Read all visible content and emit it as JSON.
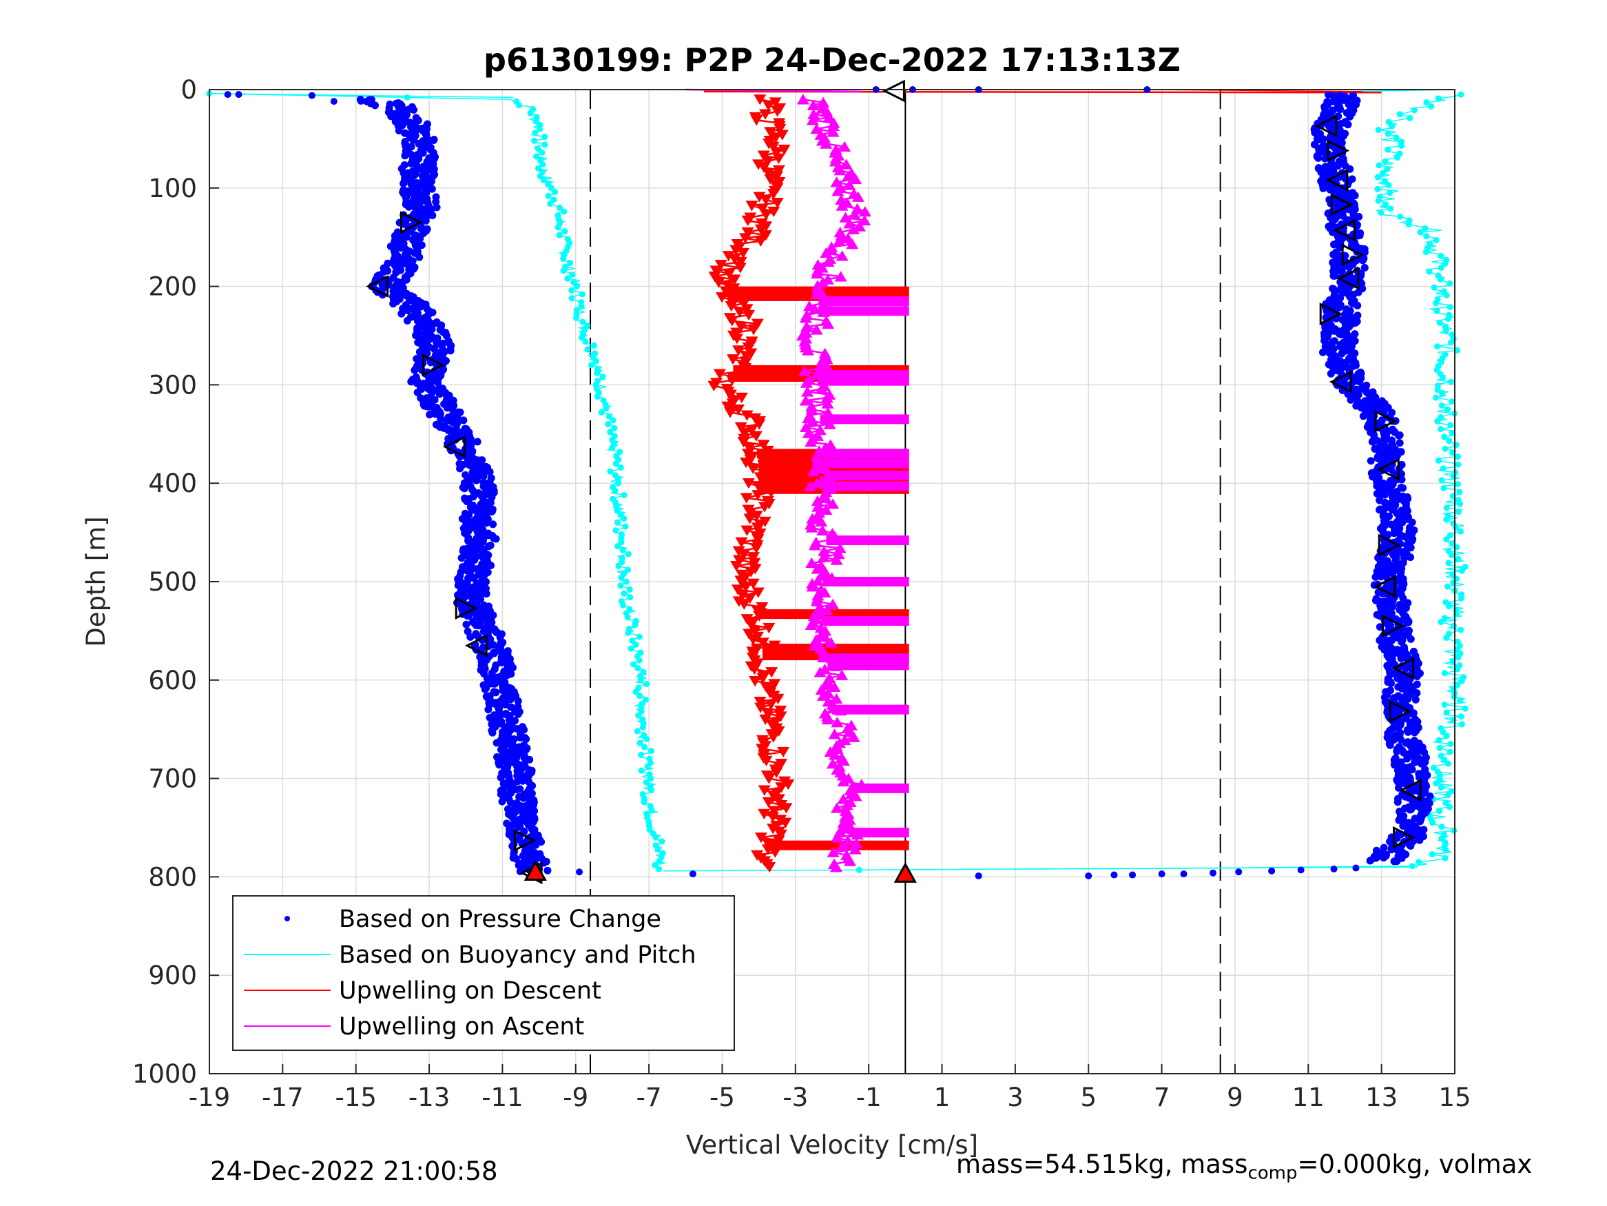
{
  "chart_data": {
    "type": "scatter",
    "title": "p6130199: P2P 24-Dec-2022 17:13:13Z",
    "xlabel": "Vertical Velocity [cm/s]",
    "ylabel": "Depth [m]",
    "xlim": [
      -19,
      15
    ],
    "ylim": [
      0,
      1000
    ],
    "y_reversed": true,
    "grid": true,
    "x_ticks": [
      "-19",
      "-17",
      "-15",
      "-13",
      "-11",
      "-9",
      "-7",
      "-5",
      "-3",
      "-1",
      "1",
      "3",
      "5",
      "7",
      "9",
      "11",
      "13",
      "15"
    ],
    "y_ticks": [
      "0",
      "100",
      "200",
      "300",
      "400",
      "500",
      "600",
      "700",
      "800",
      "900",
      "1000"
    ],
    "reference_lines": {
      "dashed_x": [
        -8.6,
        8.6
      ],
      "solid_x": [
        0
      ]
    },
    "legend": {
      "position": "bottom-left",
      "entries": [
        "Based on Pressure Change",
        "Based on Buoyancy and Pitch",
        "Upwelling on Descent",
        "Upwelling on Ascent"
      ]
    },
    "series": [
      {
        "name": "Based on Pressure Change",
        "color": "#0000ff",
        "descent": {
          "depth": [
            10,
            20,
            40,
            60,
            80,
            100,
            120,
            140,
            160,
            180,
            200,
            220,
            240,
            260,
            280,
            300,
            320,
            340,
            360,
            380,
            400,
            420,
            440,
            460,
            480,
            500,
            520,
            540,
            560,
            580,
            600,
            620,
            640,
            660,
            680,
            700,
            720,
            740,
            760,
            780,
            795
          ],
          "velocity": [
            -14.6,
            -13.7,
            -13.4,
            -13.2,
            -13.3,
            -13.3,
            -13.2,
            -13.4,
            -13.6,
            -13.8,
            -14.2,
            -13.5,
            -13.1,
            -12.8,
            -13.0,
            -13.1,
            -12.7,
            -12.4,
            -12.1,
            -11.8,
            -11.7,
            -11.6,
            -11.7,
            -11.6,
            -11.7,
            -11.8,
            -11.9,
            -11.6,
            -11.4,
            -11.2,
            -11.1,
            -11.0,
            -10.9,
            -10.8,
            -10.7,
            -10.6,
            -10.6,
            -10.5,
            -10.4,
            -10.3,
            -10.1
          ]
        },
        "ascent": {
          "depth": [
            785,
            760,
            740,
            720,
            700,
            680,
            660,
            640,
            620,
            600,
            580,
            560,
            540,
            520,
            500,
            480,
            460,
            440,
            420,
            400,
            380,
            360,
            340,
            320,
            300,
            280,
            260,
            240,
            220,
            200,
            180,
            160,
            140,
            120,
            100,
            80,
            60,
            40,
            20,
            5
          ],
          "velocity": [
            13.0,
            13.7,
            13.8,
            13.9,
            13.8,
            13.8,
            13.6,
            13.6,
            13.5,
            13.6,
            13.6,
            13.4,
            13.3,
            13.3,
            13.2,
            13.3,
            13.5,
            13.4,
            13.3,
            13.2,
            13.1,
            13.2,
            13.0,
            12.7,
            12.2,
            11.9,
            11.8,
            11.9,
            11.9,
            12.1,
            12.1,
            12.1,
            12.0,
            11.9,
            11.8,
            11.7,
            11.6,
            11.6,
            11.8,
            12.0
          ]
        },
        "surface_points": [
          [
            -18.5,
            5
          ],
          [
            -18.2,
            5
          ],
          [
            -16.2,
            6
          ],
          [
            -15.6,
            12
          ],
          [
            -0.8,
            0
          ],
          [
            0.2,
            0
          ],
          [
            2.0,
            0
          ],
          [
            6.6,
            0
          ],
          [
            -8.9,
            795
          ],
          [
            -5.8,
            797
          ],
          [
            2.0,
            799
          ],
          [
            5.0,
            799
          ],
          [
            5.7,
            798
          ],
          [
            6.2,
            798
          ],
          [
            7.0,
            797
          ],
          [
            7.6,
            797
          ],
          [
            8.4,
            796
          ],
          [
            9.1,
            795
          ],
          [
            10.0,
            794
          ],
          [
            10.8,
            793
          ],
          [
            11.7,
            792
          ],
          [
            12.3,
            791
          ]
        ]
      },
      {
        "name": "Based on Buoyancy and Pitch",
        "color": "#00ffff",
        "descent": {
          "depth": [
            4,
            10,
            20,
            40,
            60,
            80,
            100,
            120,
            140,
            160,
            180,
            200,
            220,
            240,
            260,
            280,
            300,
            320,
            340,
            360,
            380,
            400,
            420,
            440,
            460,
            480,
            500,
            520,
            540,
            560,
            580,
            600,
            620,
            640,
            660,
            680,
            700,
            720,
            740,
            760,
            780,
            794
          ],
          "velocity": [
            -19.0,
            -10.7,
            -10.2,
            -10.0,
            -10.0,
            -9.9,
            -9.7,
            -9.5,
            -9.4,
            -9.3,
            -9.2,
            -9.0,
            -8.9,
            -8.8,
            -8.6,
            -8.4,
            -8.3,
            -8.2,
            -8.1,
            -8.0,
            -7.9,
            -7.9,
            -7.8,
            -7.8,
            -7.7,
            -7.7,
            -7.7,
            -7.6,
            -7.5,
            -7.4,
            -7.3,
            -7.2,
            -7.2,
            -7.2,
            -7.1,
            -7.1,
            -7.0,
            -7.0,
            -6.9,
            -6.8,
            -6.7,
            -6.7
          ]
        },
        "ascent": {
          "depth": [
            794,
            790,
            780,
            760,
            740,
            720,
            700,
            680,
            660,
            640,
            620,
            600,
            580,
            560,
            540,
            520,
            500,
            480,
            460,
            440,
            420,
            400,
            380,
            360,
            340,
            320,
            300,
            280,
            260,
            240,
            220,
            200,
            180,
            160,
            140,
            130,
            120,
            100,
            80,
            60,
            40,
            20,
            5
          ],
          "velocity": [
            -6.5,
            14.0,
            14.6,
            14.8,
            14.5,
            14.7,
            14.6,
            14.8,
            14.7,
            15.0,
            15.0,
            15.0,
            14.9,
            15.0,
            14.9,
            15.0,
            15.0,
            15.0,
            15.0,
            15.0,
            15.0,
            14.9,
            14.8,
            14.8,
            14.8,
            14.7,
            14.8,
            14.7,
            14.8,
            14.7,
            14.6,
            14.6,
            14.5,
            14.5,
            14.3,
            13.4,
            13.0,
            13.2,
            13.1,
            13.3,
            13.2,
            14.0,
            15.0
          ]
        }
      },
      {
        "name": "Upwelling on Descent",
        "color": "#ff0000",
        "depth": [
          10,
          30,
          50,
          80,
          110,
          140,
          170,
          190,
          200,
          220,
          240,
          260,
          280,
          300,
          320,
          340,
          360,
          380,
          400,
          420,
          440,
          460,
          480,
          500,
          520,
          540,
          560,
          580,
          600,
          620,
          640,
          660,
          680,
          700,
          720,
          740,
          760,
          780,
          790
        ],
        "velocity": [
          -3.7,
          -3.8,
          -3.5,
          -3.7,
          -3.8,
          -4.0,
          -4.5,
          -5.0,
          -5.0,
          -4.7,
          -4.3,
          -4.4,
          -4.6,
          -5.0,
          -4.6,
          -4.2,
          -4.1,
          -4.0,
          -4.0,
          -4.0,
          -4.1,
          -4.2,
          -4.4,
          -4.4,
          -4.2,
          -4.0,
          -3.9,
          -3.9,
          -3.9,
          -3.8,
          -3.7,
          -3.6,
          -3.6,
          -3.5,
          -3.5,
          -3.6,
          -3.6,
          -3.9,
          -4.0
        ],
        "spikes_to_zero_at_depth": [
          205,
          210,
          285,
          292,
          370,
          378,
          385,
          392,
          400,
          406,
          533,
          568,
          575,
          768
        ]
      },
      {
        "name": "Upwelling on Ascent",
        "color": "#ff00ff",
        "depth": [
          790,
          770,
          750,
          730,
          710,
          690,
          670,
          650,
          630,
          610,
          590,
          570,
          550,
          530,
          510,
          490,
          470,
          450,
          430,
          410,
          390,
          370,
          350,
          330,
          310,
          290,
          270,
          250,
          230,
          210,
          190,
          170,
          150,
          130,
          110,
          90,
          70,
          50,
          30,
          10
        ],
        "velocity": [
          -1.8,
          -1.7,
          -1.5,
          -1.6,
          -1.5,
          -1.7,
          -1.8,
          -1.7,
          -2.0,
          -2.0,
          -2.1,
          -2.2,
          -2.3,
          -2.3,
          -2.2,
          -2.3,
          -2.1,
          -2.2,
          -2.3,
          -2.3,
          -2.2,
          -2.3,
          -2.4,
          -2.3,
          -2.4,
          -2.4,
          -2.5,
          -2.5,
          -2.4,
          -2.3,
          -2.1,
          -2.0,
          -1.6,
          -1.3,
          -1.5,
          -1.7,
          -2.0,
          -2.0,
          -2.2,
          -2.5
        ],
        "spikes_to_zero_at_depth": [
          215,
          225,
          290,
          296,
          335,
          370,
          380,
          392,
          403,
          458,
          500,
          540,
          578,
          585,
          630,
          710,
          755
        ]
      }
    ],
    "markers": {
      "descent_triangles": {
        "color": "#000000",
        "points": [
          [
            -13.5,
            135
          ],
          [
            -14.4,
            200
          ],
          [
            -12.9,
            280
          ],
          [
            -12.3,
            363
          ],
          [
            -12.0,
            527
          ],
          [
            -11.7,
            565
          ],
          [
            -10.4,
            763
          ],
          [
            -10.2,
            796
          ]
        ]
      },
      "ascent_triangles": {
        "color": "#000000",
        "points": [
          [
            11.5,
            37
          ],
          [
            11.8,
            62
          ],
          [
            11.8,
            92
          ],
          [
            11.9,
            117
          ],
          [
            12.0,
            143
          ],
          [
            12.2,
            168
          ],
          [
            12.1,
            192
          ],
          [
            11.6,
            228
          ],
          [
            11.9,
            297
          ],
          [
            13.1,
            337
          ],
          [
            13.2,
            386
          ],
          [
            13.2,
            463
          ],
          [
            13.1,
            505
          ],
          [
            13.3,
            545
          ],
          [
            13.6,
            588
          ],
          [
            13.5,
            632
          ],
          [
            13.8,
            712
          ],
          [
            13.6,
            760
          ]
        ]
      },
      "surface_marker": {
        "point": [
          -0.3,
          0
        ]
      },
      "bottom_markers": [
        {
          "point": [
            0.0,
            797
          ],
          "color": "#ff0000"
        },
        {
          "point": [
            -10.1,
            795
          ],
          "color": "#ff0000"
        }
      ]
    }
  },
  "footer": {
    "left": "24-Dec-2022 21:00:58",
    "right_prefix": "mass=54.515kg, mass",
    "right_sub": "comp",
    "right_suffix": "=0.000kg, volmax"
  }
}
